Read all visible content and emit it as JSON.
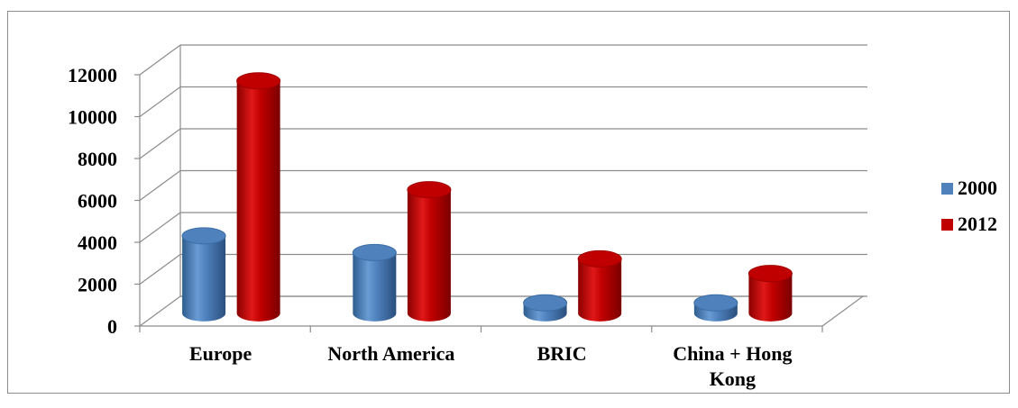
{
  "chart_data": {
    "type": "bar",
    "style": "3d-cylinder",
    "categories": [
      "Europe",
      "North America",
      "BRIC",
      "China + Hong Kong"
    ],
    "series": [
      {
        "name": "2000",
        "color": "#4f81bd",
        "values": [
          3700,
          2900,
          500,
          500
        ]
      },
      {
        "name": "2012",
        "color": "#c00000",
        "values": [
          11100,
          5900,
          2600,
          1900
        ]
      }
    ],
    "y_ticks": [
      "0",
      "2000",
      "4000",
      "6000",
      "8000",
      "10000",
      "12000"
    ],
    "ylim": [
      0,
      12000
    ],
    "grid": true,
    "legend_position": "right"
  }
}
